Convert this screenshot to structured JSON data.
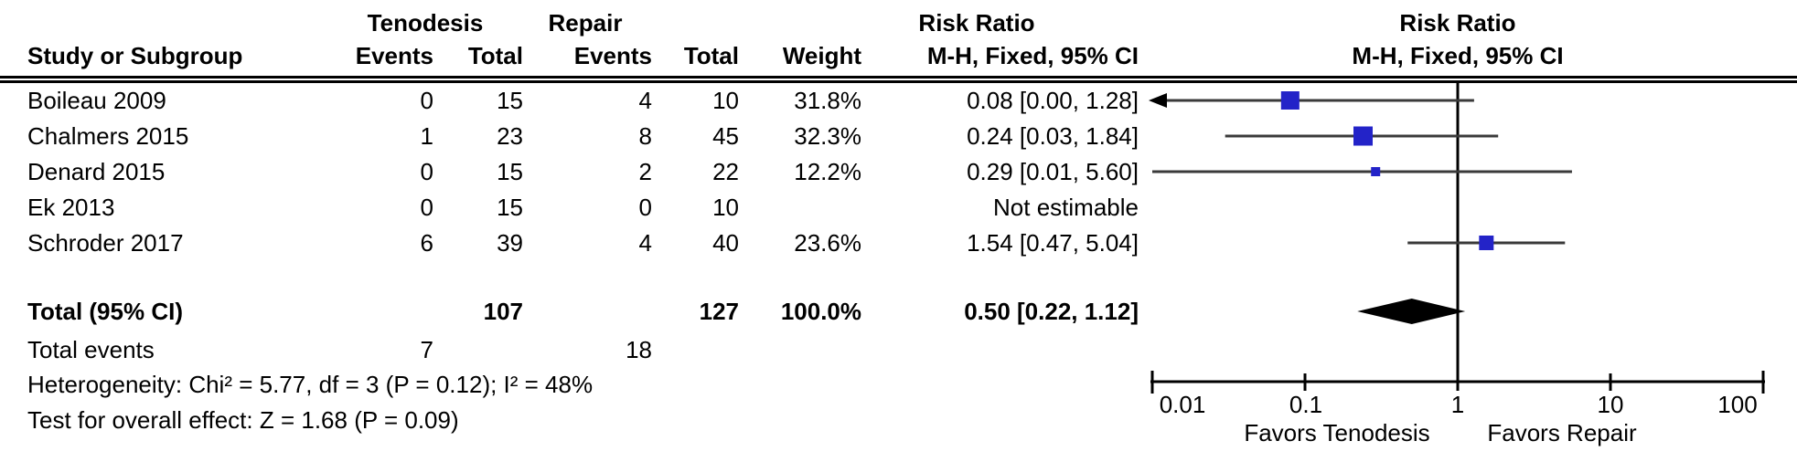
{
  "header": {
    "group1": "Tenodesis",
    "group2": "Repair",
    "effect_left": "Risk Ratio",
    "effect_right": "Risk Ratio",
    "study_col": "Study or Subgroup",
    "events_col_1": "Events",
    "total_col_1": "Total",
    "events_col_2": "Events",
    "total_col_2": "Total",
    "weight_col": "Weight",
    "ci_col_left": "M-H, Fixed, 95% CI",
    "ci_col_right": "M-H, Fixed, 95% CI"
  },
  "colors": {
    "marker_blue": "#2323c8",
    "diamond_black": "#000000",
    "line_dark": "#3a3a3a"
  },
  "chart_data": {
    "type": "forest",
    "x_scale": "log",
    "xlim": [
      0.01,
      100
    ],
    "ticks": [
      0.01,
      0.1,
      1,
      10,
      100
    ],
    "tick_labels": [
      "0.01",
      "0.1",
      "1",
      "10",
      "100"
    ],
    "null_value": 1,
    "favors_left": "Favors Tenodesis",
    "favors_right": "Favors Repair",
    "studies": [
      {
        "name": "Boileau 2009",
        "exp_events": "0",
        "exp_total": "15",
        "ctl_events": "4",
        "ctl_total": "10",
        "weight": "31.8%",
        "weight_pct": 31.8,
        "ci_text": "0.08 [0.00, 1.28]",
        "rr": 0.08,
        "ci_low": 0.0,
        "ci_high": 1.28,
        "estimable": true
      },
      {
        "name": "Chalmers 2015",
        "exp_events": "1",
        "exp_total": "23",
        "ctl_events": "8",
        "ctl_total": "45",
        "weight": "32.3%",
        "weight_pct": 32.3,
        "ci_text": "0.24 [0.03, 1.84]",
        "rr": 0.24,
        "ci_low": 0.03,
        "ci_high": 1.84,
        "estimable": true
      },
      {
        "name": "Denard 2015",
        "exp_events": "0",
        "exp_total": "15",
        "ctl_events": "2",
        "ctl_total": "22",
        "weight": "12.2%",
        "weight_pct": 12.2,
        "ci_text": "0.29 [0.01, 5.60]",
        "rr": 0.29,
        "ci_low": 0.01,
        "ci_high": 5.6,
        "estimable": true
      },
      {
        "name": "Ek 2013",
        "exp_events": "0",
        "exp_total": "15",
        "ctl_events": "0",
        "ctl_total": "10",
        "weight": "",
        "weight_pct": 0,
        "ci_text": "Not estimable",
        "estimable": false
      },
      {
        "name": "Schroder 2017",
        "exp_events": "6",
        "exp_total": "39",
        "ctl_events": "4",
        "ctl_total": "40",
        "weight": "23.6%",
        "weight_pct": 23.6,
        "ci_text": "1.54 [0.47, 5.04]",
        "rr": 1.54,
        "ci_low": 0.47,
        "ci_high": 5.04,
        "estimable": true
      }
    ],
    "total": {
      "label": "Total (95% CI)",
      "exp_total": "107",
      "ctl_total": "127",
      "weight": "100.0%",
      "ci_text": "0.50 [0.22, 1.12]",
      "rr": 0.5,
      "ci_low": 0.22,
      "ci_high": 1.12
    },
    "total_events": {
      "label": "Total events",
      "exp": "7",
      "ctl": "18"
    },
    "heterogeneity": "Heterogeneity: Chi² = 5.77, df = 3 (P = 0.12); I² = 48%",
    "overall_effect": "Test for overall effect: Z = 1.68 (P = 0.09)"
  }
}
